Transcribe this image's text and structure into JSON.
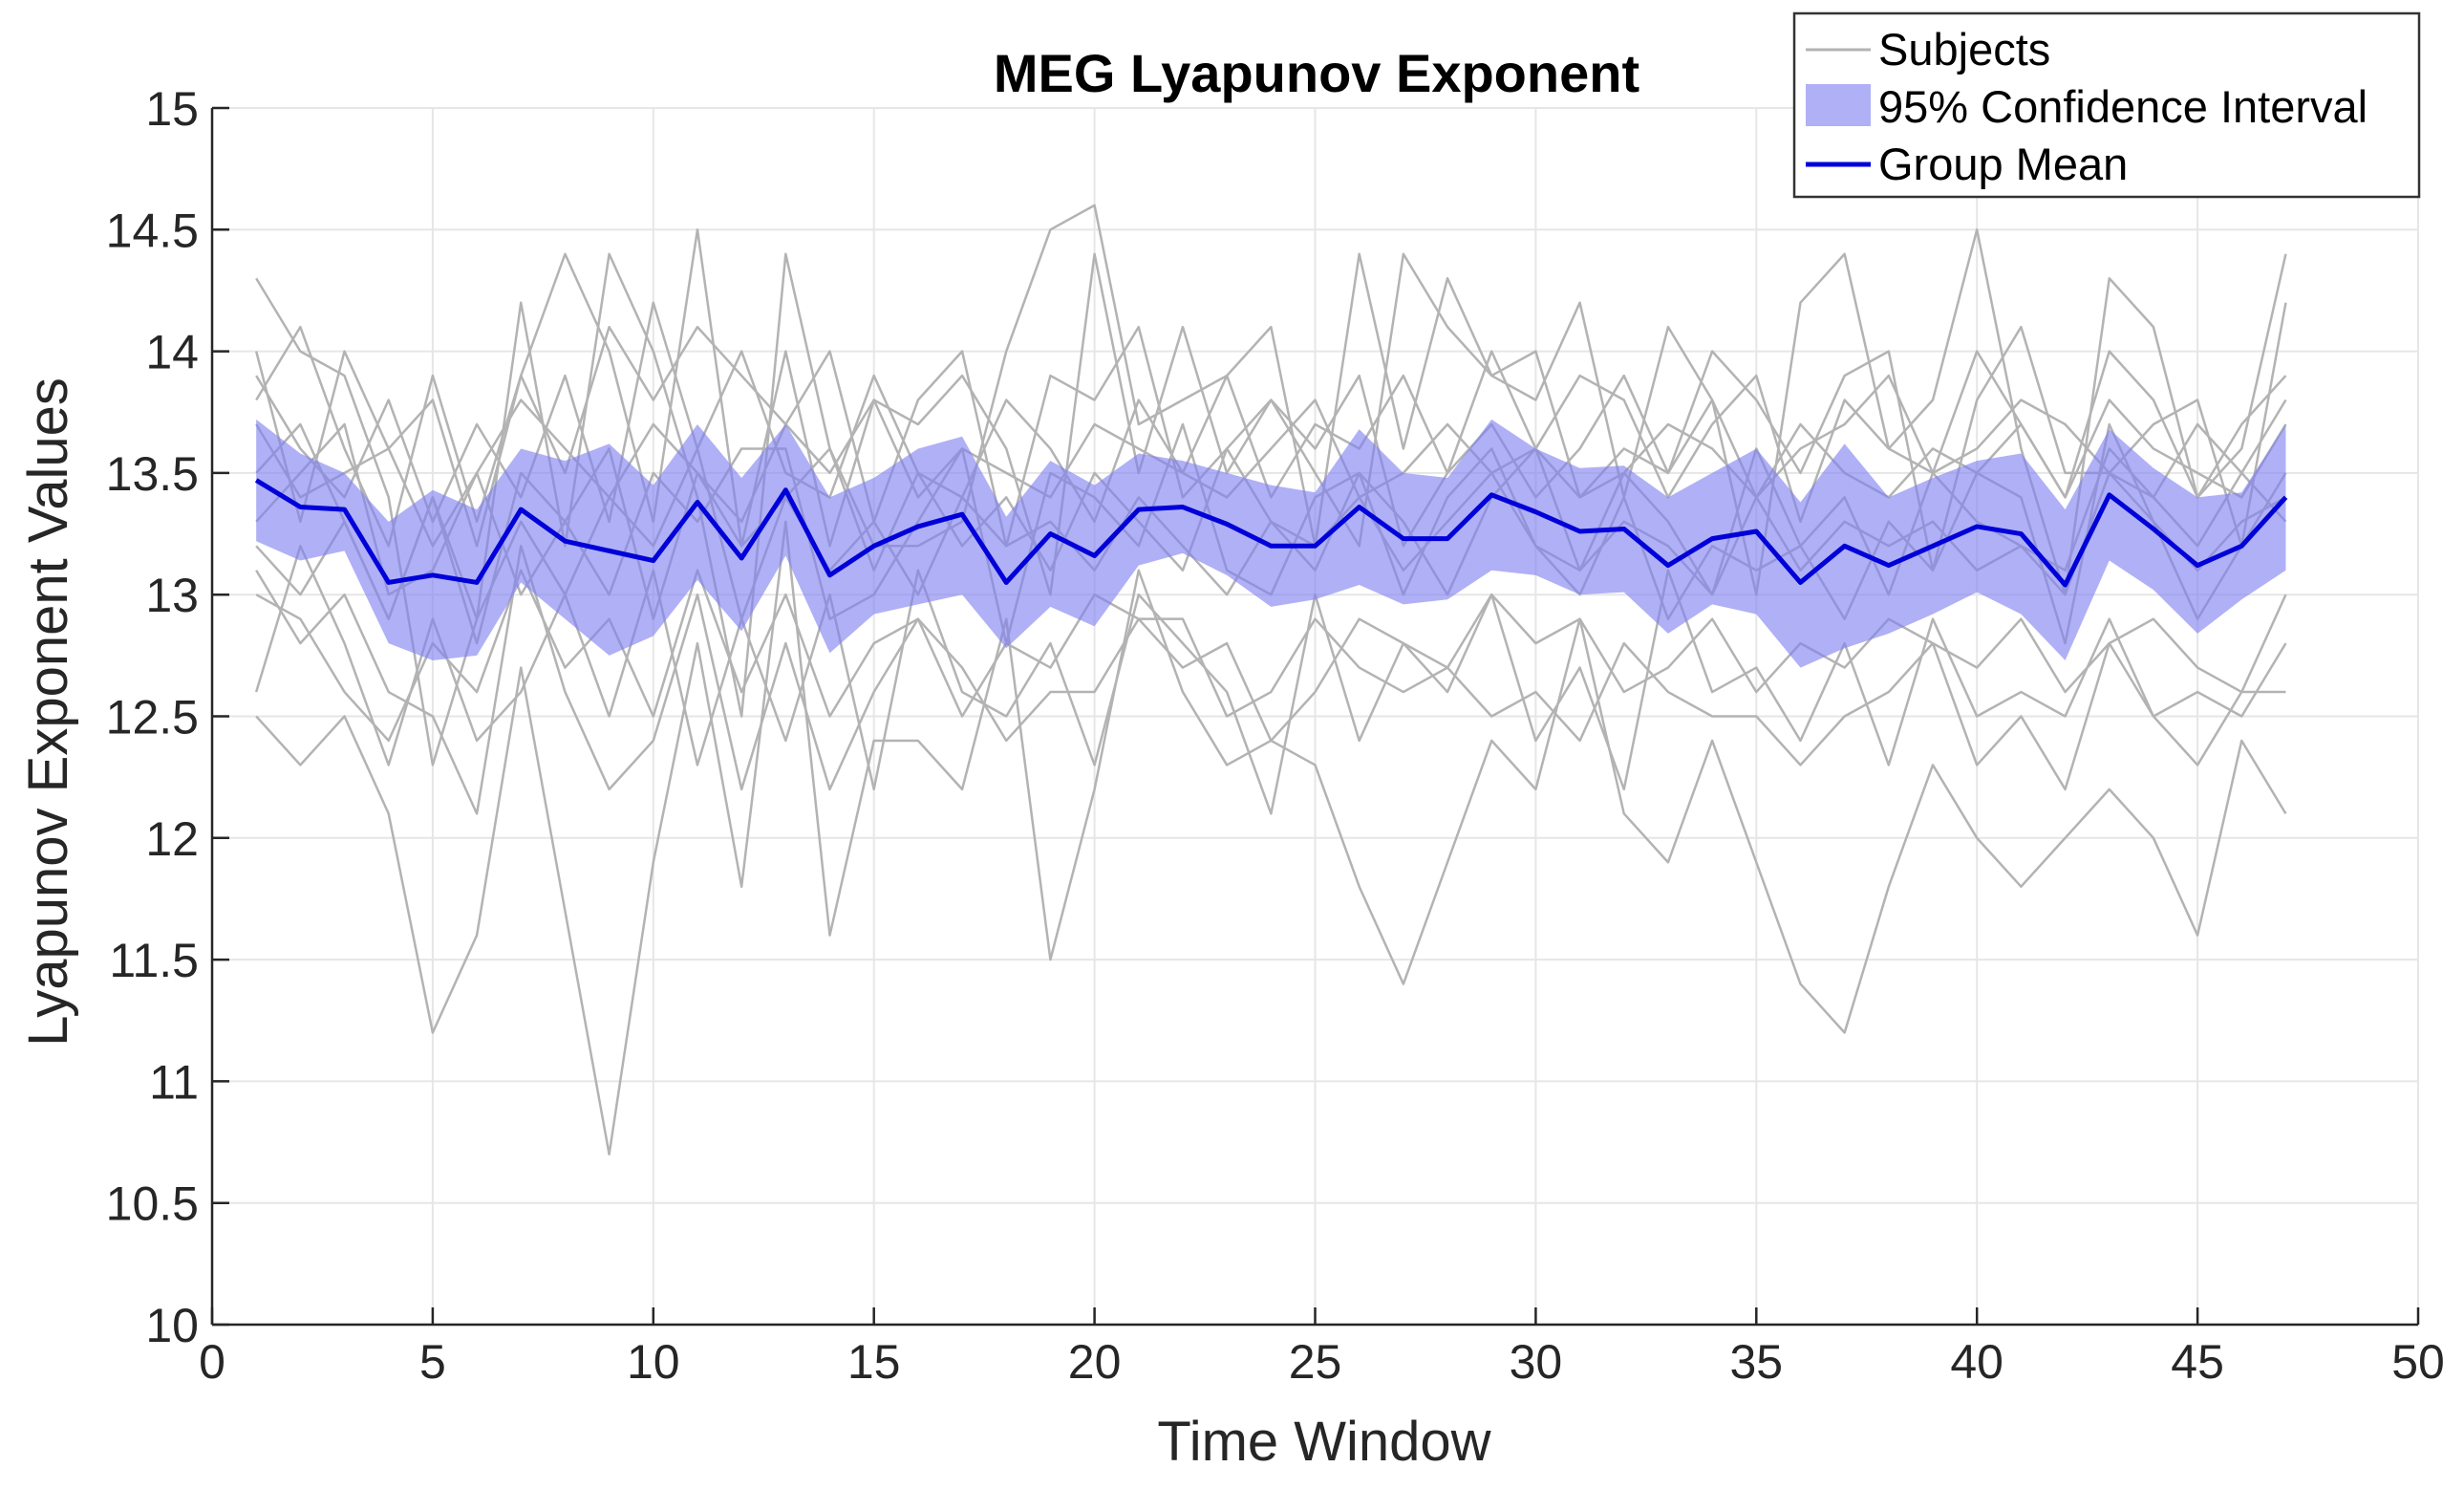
{
  "chart_data": {
    "type": "line",
    "title": "MEG Lyapunov Exponent",
    "xlabel": "Time Window",
    "ylabel": "Lyapunov Exponent Values",
    "xlim": [
      0,
      50
    ],
    "ylim": [
      10,
      15
    ],
    "grid": true,
    "legend_position": "top-right",
    "x_ticks": [
      0,
      5,
      10,
      15,
      20,
      25,
      30,
      35,
      40,
      45,
      50
    ],
    "x_tick_labels": [
      "0",
      "5",
      "10",
      "15",
      "20",
      "25",
      "30",
      "35",
      "40",
      "45",
      "50"
    ],
    "y_ticks": [
      10,
      10.5,
      11,
      11.5,
      12,
      12.5,
      13,
      13.5,
      14,
      14.5,
      15
    ],
    "y_tick_labels": [
      "10",
      "10.5",
      "11",
      "11.5",
      "12",
      "12.5",
      "13",
      "13.5",
      "14",
      "14.5",
      "15"
    ],
    "legend": {
      "subjects": "Subjects",
      "ci": "95% Confidence Interval",
      "mean": "Group Mean"
    },
    "colors": {
      "subjects": "#b3b3b3",
      "ci_fill": "#8080f0",
      "mean": "#0000d8",
      "grid": "#e6e6e6",
      "axis": "#262626"
    },
    "x": [
      1,
      2,
      3,
      4,
      5,
      6,
      7,
      8,
      9,
      10,
      11,
      12,
      13,
      14,
      15,
      16,
      17,
      18,
      19,
      20,
      21,
      22,
      23,
      24,
      25,
      26,
      27,
      28,
      29,
      30,
      31,
      32,
      33,
      34,
      35,
      36,
      37,
      38,
      39,
      40,
      41,
      42,
      43,
      44,
      45,
      46,
      47
    ],
    "group_mean": [
      13.47,
      13.36,
      13.35,
      13.05,
      13.08,
      13.05,
      13.35,
      13.22,
      13.18,
      13.14,
      13.38,
      13.15,
      13.43,
      13.08,
      13.2,
      13.28,
      13.33,
      13.05,
      13.25,
      13.16,
      13.35,
      13.36,
      13.29,
      13.2,
      13.2,
      13.36,
      13.23,
      13.23,
      13.41,
      13.34,
      13.26,
      13.27,
      13.12,
      13.23,
      13.26,
      13.05,
      13.2,
      13.12,
      13.2,
      13.28,
      13.25,
      13.04,
      13.41,
      13.27,
      13.12,
      13.2,
      13.4
    ],
    "ci_upper": [
      13.72,
      13.58,
      13.5,
      13.3,
      13.43,
      13.35,
      13.6,
      13.55,
      13.62,
      13.45,
      13.7,
      13.48,
      13.7,
      13.4,
      13.48,
      13.6,
      13.65,
      13.32,
      13.55,
      13.45,
      13.58,
      13.55,
      13.5,
      13.45,
      13.42,
      13.68,
      13.5,
      13.48,
      13.72,
      13.6,
      13.52,
      13.53,
      13.4,
      13.5,
      13.6,
      13.38,
      13.62,
      13.4,
      13.48,
      13.55,
      13.58,
      13.35,
      13.68,
      13.52,
      13.4,
      13.42,
      13.7
    ],
    "ci_lower": [
      13.22,
      13.14,
      13.18,
      12.8,
      12.73,
      12.75,
      13.05,
      12.9,
      12.75,
      12.83,
      13.06,
      12.85,
      13.16,
      12.76,
      12.92,
      12.96,
      13.0,
      12.78,
      12.95,
      12.87,
      13.12,
      13.17,
      13.08,
      12.95,
      12.98,
      13.04,
      12.96,
      12.98,
      13.1,
      13.08,
      13.0,
      13.01,
      12.84,
      12.96,
      12.92,
      12.7,
      12.78,
      12.84,
      12.92,
      13.01,
      12.92,
      12.73,
      13.14,
      13.02,
      12.84,
      12.98,
      13.1
    ],
    "series": [
      {
        "name": "Subjects",
        "values": [
          14.3,
          14.0,
          13.9,
          13.4,
          12.3,
          12.9,
          14.2,
          13.2,
          14.4,
          14.0,
          13.4,
          12.5,
          14.4,
          13.6,
          13.2,
          13.2,
          13.3,
          14.0,
          14.5,
          14.6,
          13.7,
          13.8,
          13.9,
          14.1,
          13.2,
          14.4,
          13.6,
          14.3,
          13.9,
          13.8,
          14.2,
          13.4,
          14.1,
          13.8,
          13.0,
          14.2,
          14.4,
          13.6,
          13.8,
          14.5,
          13.6,
          13.0,
          14.3,
          14.1,
          13.4,
          13.6,
          14.4
        ]
      },
      {
        "name": "Subjects",
        "values": [
          12.5,
          12.3,
          12.5,
          12.1,
          11.2,
          11.6,
          12.7,
          11.7,
          10.7,
          11.9,
          12.8,
          11.8,
          13.3,
          11.6,
          12.4,
          12.4,
          12.2,
          12.9,
          11.5,
          12.2,
          13.1,
          12.6,
          12.3,
          12.4,
          12.3,
          11.8,
          11.4,
          11.9,
          12.4,
          12.2,
          12.9,
          12.1,
          11.9,
          12.4,
          11.9,
          11.4,
          11.2,
          11.8,
          12.3,
          12.0,
          11.8,
          12.0,
          12.2,
          12.0,
          11.6,
          12.4,
          12.1
        ]
      },
      {
        "name": "Subjects",
        "values": [
          13.8,
          14.1,
          13.6,
          13.2,
          13.9,
          13.3,
          13.9,
          14.4,
          14.0,
          13.3,
          14.5,
          13.2,
          14.0,
          13.2,
          13.8,
          13.7,
          13.9,
          13.6,
          13.0,
          14.4,
          13.5,
          14.1,
          13.5,
          13.8,
          13.5,
          13.2,
          14.4,
          14.1,
          13.9,
          14.0,
          13.4,
          13.6,
          13.5,
          14.0,
          13.8,
          13.5,
          13.9,
          14.0,
          13.1,
          13.8,
          14.1,
          13.5,
          13.5,
          13.7,
          13.8,
          13.2,
          14.2
        ]
      },
      {
        "name": "Subjects",
        "values": [
          13.1,
          12.8,
          13.0,
          12.6,
          12.5,
          12.1,
          13.2,
          12.6,
          12.2,
          12.4,
          13.0,
          12.2,
          12.8,
          12.2,
          12.6,
          12.9,
          12.7,
          12.4,
          12.6,
          12.6,
          12.9,
          12.9,
          12.5,
          12.6,
          12.9,
          12.7,
          12.6,
          12.7,
          12.5,
          12.6,
          12.4,
          12.8,
          12.6,
          12.5,
          12.5,
          12.3,
          12.5,
          12.6,
          12.8,
          12.3,
          12.5,
          12.2,
          12.8,
          12.5,
          12.3,
          12.6,
          12.6
        ]
      },
      {
        "name": "Subjects",
        "values": [
          13.5,
          13.7,
          13.3,
          12.9,
          13.4,
          12.8,
          13.5,
          13.3,
          13.0,
          13.5,
          13.3,
          13.6,
          13.6,
          12.9,
          13.0,
          13.3,
          13.6,
          12.8,
          13.5,
          13.4,
          13.2,
          13.7,
          13.1,
          13.0,
          13.4,
          13.5,
          13.0,
          13.4,
          13.6,
          13.2,
          13.0,
          13.4,
          12.9,
          13.2,
          13.1,
          13.2,
          12.9,
          13.3,
          13.1,
          13.5,
          13.4,
          12.8,
          13.7,
          13.3,
          12.9,
          13.2,
          13.5
        ]
      },
      {
        "name": "Subjects",
        "values": [
          14.0,
          13.3,
          14.0,
          13.6,
          13.8,
          13.2,
          13.9,
          13.5,
          14.1,
          13.8,
          14.1,
          13.9,
          13.7,
          14.0,
          13.3,
          13.8,
          14.0,
          13.2,
          13.9,
          13.8,
          14.1,
          13.4,
          13.6,
          13.8,
          13.6,
          13.9,
          13.2,
          13.5,
          14.0,
          13.6,
          13.9,
          13.8,
          13.4,
          13.7,
          13.9,
          13.3,
          13.8,
          13.6,
          13.5,
          14.0,
          13.7,
          13.4,
          14.0,
          13.8,
          13.4,
          13.7,
          13.9
        ]
      },
      {
        "name": "Subjects",
        "values": [
          12.6,
          13.2,
          12.8,
          12.3,
          12.9,
          12.4,
          12.6,
          13.0,
          12.5,
          13.1,
          12.3,
          12.9,
          12.4,
          13.0,
          12.2,
          13.1,
          12.6,
          12.5,
          12.8,
          12.3,
          13.0,
          12.8,
          12.6,
          12.1,
          13.0,
          12.4,
          12.8,
          12.6,
          13.0,
          12.4,
          12.7,
          12.2,
          13.1,
          12.6,
          12.7,
          12.4,
          12.8,
          12.3,
          12.9,
          12.5,
          12.6,
          12.5,
          12.9,
          12.5,
          12.6,
          12.5,
          12.8
        ]
      },
      {
        "name": "Subjects",
        "values": [
          13.3,
          13.5,
          13.7,
          13.0,
          13.1,
          13.5,
          13.0,
          13.3,
          13.6,
          12.9,
          13.5,
          13.2,
          13.4,
          13.6,
          13.1,
          13.5,
          13.2,
          13.4,
          13.1,
          13.5,
          13.3,
          13.1,
          13.6,
          13.3,
          13.1,
          13.5,
          13.3,
          13.0,
          13.4,
          13.6,
          13.1,
          13.5,
          13.3,
          13.0,
          13.6,
          13.2,
          13.4,
          13.0,
          13.5,
          13.3,
          13.2,
          13.1,
          13.6,
          13.4,
          13.2,
          13.5,
          13.3
        ]
      },
      {
        "name": "Subjects",
        "values": [
          13.9,
          13.6,
          13.4,
          13.8,
          13.3,
          13.7,
          13.4,
          13.9,
          13.3,
          14.2,
          13.6,
          14.0,
          13.5,
          13.4,
          13.9,
          13.5,
          13.4,
          13.8,
          13.6,
          13.3,
          13.8,
          13.5,
          13.9,
          13.4,
          13.7,
          13.6,
          13.9,
          13.5,
          13.7,
          13.4,
          13.6,
          13.9,
          13.5,
          13.8,
          13.4,
          13.6,
          13.7,
          13.9,
          13.5,
          13.6,
          13.8,
          13.7,
          13.5,
          13.4,
          13.7,
          13.5,
          13.8
        ]
      },
      {
        "name": "Subjects",
        "values": [
          13.0,
          12.9,
          12.6,
          12.4,
          12.8,
          12.6,
          13.1,
          12.7,
          12.9,
          12.5,
          13.1,
          12.6,
          13.0,
          12.5,
          12.8,
          12.9,
          12.5,
          12.8,
          12.7,
          13.0,
          12.9,
          12.7,
          12.8,
          12.4,
          12.6,
          12.9,
          12.8,
          12.7,
          13.0,
          12.8,
          12.9,
          12.6,
          12.7,
          12.9,
          12.6,
          12.8,
          12.7,
          12.9,
          12.8,
          12.7,
          12.9,
          12.6,
          12.8,
          12.9,
          12.7,
          12.6,
          13.0
        ]
      },
      {
        "name": "Subjects",
        "values": [
          13.7,
          13.4,
          13.5,
          13.6,
          13.2,
          13.5,
          13.8,
          13.6,
          13.4,
          13.7,
          13.5,
          13.3,
          13.7,
          13.5,
          13.8,
          13.4,
          13.6,
          13.5,
          13.4,
          13.7,
          13.6,
          13.5,
          13.4,
          13.6,
          13.8,
          13.4,
          13.5,
          13.7,
          13.5,
          13.6,
          13.4,
          13.5,
          13.7,
          13.6,
          13.4,
          13.7,
          13.5,
          13.4,
          13.6,
          13.5,
          13.7,
          13.4,
          13.8,
          13.6,
          13.5,
          13.4,
          13.7
        ]
      },
      {
        "name": "Subjects",
        "values": [
          13.2,
          13.0,
          13.3,
          12.9,
          13.4,
          12.9,
          13.3,
          13.0,
          13.4,
          13.2,
          13.6,
          12.9,
          13.4,
          13.1,
          13.3,
          13.0,
          13.4,
          13.2,
          13.3,
          13.1,
          13.4,
          13.2,
          13.0,
          13.3,
          13.2,
          13.4,
          13.1,
          13.3,
          13.5,
          13.2,
          13.1,
          13.3,
          13.2,
          13.0,
          13.4,
          13.1,
          13.3,
          13.2,
          13.3,
          13.1,
          13.2,
          13.0,
          13.5,
          13.3,
          13.1,
          13.3,
          13.4
        ]
      }
    ]
  }
}
